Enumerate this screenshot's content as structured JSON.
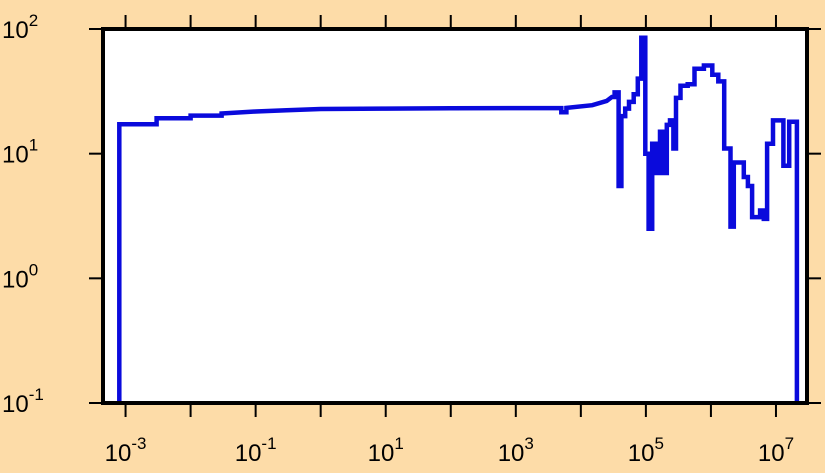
{
  "chart_data": {
    "type": "line",
    "style": "step",
    "title": "",
    "xlabel": "",
    "ylabel": "",
    "x_scale": "log",
    "y_scale": "log",
    "xlim": [
      0.00045,
      30000000
    ],
    "ylim": [
      0.1,
      100
    ],
    "grid": false,
    "legend": "none",
    "colors": {
      "line": "#0A0ADC",
      "background": "#FDDCA8",
      "plot_area": "#FFFFFF",
      "frame": "#000000"
    },
    "x_ticks": [
      {
        "value": 0.001,
        "base": "10",
        "exp": "-3"
      },
      {
        "value": 0.1,
        "base": "10",
        "exp": "-1"
      },
      {
        "value": 10,
        "base": "10",
        "exp": "1"
      },
      {
        "value": 1000,
        "base": "10",
        "exp": "3"
      },
      {
        "value": 100000,
        "base": "10",
        "exp": "5"
      },
      {
        "value": 10000000,
        "base": "10",
        "exp": "7"
      }
    ],
    "x_minor_ticks": [
      0.01,
      1,
      100,
      10000,
      1000000
    ],
    "y_ticks": [
      {
        "value": 0.1,
        "base": "10",
        "exp": "-1"
      },
      {
        "value": 1,
        "base": "10",
        "exp": "0"
      },
      {
        "value": 10,
        "base": "10",
        "exp": "1"
      },
      {
        "value": 100,
        "base": "10",
        "exp": "2"
      }
    ],
    "series": [
      {
        "points": [
          [
            0.0008,
            0.1
          ],
          [
            0.0008,
            17.2
          ],
          [
            0.003,
            17.2
          ],
          [
            0.003,
            19.2
          ],
          [
            0.01,
            19.2
          ],
          [
            0.01,
            20.2
          ],
          [
            0.03,
            20.2
          ],
          [
            0.03,
            21.0
          ],
          [
            0.1,
            21.8
          ],
          [
            0.3,
            22.3
          ],
          [
            1,
            22.8
          ],
          [
            10,
            23.0
          ],
          [
            100,
            23.1
          ],
          [
            1000,
            23.2
          ],
          [
            5000,
            23.2
          ],
          [
            5000,
            21.5
          ],
          [
            6000,
            21.5
          ],
          [
            6000,
            23.3
          ],
          [
            15000,
            24.5
          ],
          [
            25000,
            26.5
          ],
          [
            30000,
            28.5
          ],
          [
            33000,
            28.5
          ],
          [
            33000,
            31.0
          ],
          [
            38000,
            31.0
          ],
          [
            38000,
            5.5
          ],
          [
            42000,
            5.5
          ],
          [
            42000,
            20.0
          ],
          [
            48000,
            20.0
          ],
          [
            48000,
            23.0
          ],
          [
            55000,
            23.0
          ],
          [
            55000,
            26.0
          ],
          [
            65000,
            26.0
          ],
          [
            65000,
            30.0
          ],
          [
            75000,
            30.0
          ],
          [
            75000,
            40.0
          ],
          [
            85000,
            40.0
          ],
          [
            85000,
            85.0
          ],
          [
            98000,
            85.0
          ],
          [
            98000,
            10.0
          ],
          [
            110000,
            10.0
          ],
          [
            110000,
            2.5
          ],
          [
            125000,
            2.5
          ],
          [
            125000,
            12.0
          ],
          [
            145000,
            12.0
          ],
          [
            145000,
            7.0
          ],
          [
            165000,
            7.0
          ],
          [
            165000,
            15.0
          ],
          [
            190000,
            15.0
          ],
          [
            190000,
            7.0
          ],
          [
            210000,
            7.0
          ],
          [
            210000,
            17.0
          ],
          [
            235000,
            17.0
          ],
          [
            235000,
            18.5
          ],
          [
            265000,
            18.5
          ],
          [
            265000,
            11.0
          ],
          [
            290000,
            11.0
          ],
          [
            290000,
            28.0
          ],
          [
            340000,
            28.0
          ],
          [
            340000,
            35.0
          ],
          [
            440000,
            35.0
          ],
          [
            440000,
            36.0
          ],
          [
            560000,
            36.0
          ],
          [
            560000,
            48.0
          ],
          [
            780000,
            48.0
          ],
          [
            780000,
            51.0
          ],
          [
            1050000,
            51.0
          ],
          [
            1050000,
            43.0
          ],
          [
            1300000,
            43.0
          ],
          [
            1300000,
            38.0
          ],
          [
            1600000,
            38.0
          ],
          [
            1600000,
            11.0
          ],
          [
            2000000,
            11.0
          ],
          [
            2000000,
            2.6
          ],
          [
            2250000,
            2.6
          ],
          [
            2250000,
            8.5
          ],
          [
            3200000,
            8.5
          ],
          [
            3200000,
            6.5
          ],
          [
            3700000,
            6.5
          ],
          [
            3700000,
            5.5
          ],
          [
            4300000,
            5.5
          ],
          [
            4300000,
            3.1
          ],
          [
            5700000,
            3.1
          ],
          [
            5700000,
            3.5
          ],
          [
            6500000,
            3.5
          ],
          [
            6500000,
            3.0
          ],
          [
            7300000,
            3.0
          ],
          [
            7300000,
            12.0
          ],
          [
            9000000,
            12.0
          ],
          [
            9000000,
            18.5
          ],
          [
            13000000,
            18.5
          ],
          [
            13000000,
            8.0
          ],
          [
            16000000,
            8.0
          ],
          [
            16000000,
            18.0
          ],
          [
            21000000,
            18.0
          ],
          [
            21000000,
            0.1
          ]
        ]
      }
    ]
  }
}
